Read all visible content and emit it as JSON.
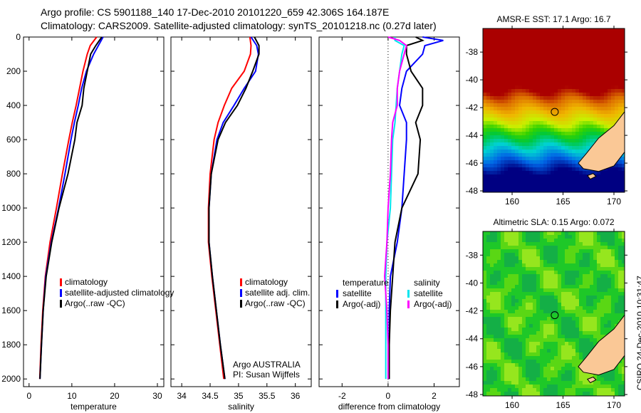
{
  "title": {
    "line1": "Argo profile: CS 5901188_140 17-Dec-2010 20101220_659 42.306S 164.187E",
    "line2": "Climatology: CARS2009. Satellite-adjusted climatology: synTS_20101218.nc (0.27d later)"
  },
  "credit": "CSIRO 24-Dec-2010 10:31:47",
  "colors": {
    "climatology": "#ff0000",
    "satellite": "#0000ff",
    "argo": "#000000",
    "sal_satellite": "#00e5ee",
    "sal_argo": "#ff00ff"
  },
  "chart_data": [
    {
      "type": "line",
      "xlabel": "temperature",
      "ylabel": "",
      "xlim": [
        -1.3,
        31.5
      ],
      "ylim": [
        2045,
        0
      ],
      "xticks": [
        0,
        10,
        20,
        30
      ],
      "yticks": [
        0,
        200,
        400,
        600,
        800,
        1000,
        1200,
        1400,
        1600,
        1800,
        2000
      ],
      "depth": [
        0,
        50,
        100,
        200,
        300,
        400,
        500,
        600,
        800,
        1000,
        1200,
        1400,
        1600,
        1800,
        2000
      ],
      "legend": [
        "climatology",
        "satellite-adjusted climatology",
        "Argo(..raw -QC)"
      ],
      "series": [
        {
          "name": "climatology",
          "color": "#ff0000",
          "values": [
            15.8,
            14.3,
            13.6,
            12.6,
            11.8,
            11.0,
            10.1,
            9.3,
            7.8,
            6.4,
            4.9,
            3.8,
            3.2,
            2.8,
            2.5
          ]
        },
        {
          "name": "satellite-adjusted climatology",
          "color": "#0000ff",
          "values": [
            17.3,
            16.2,
            15.1,
            13.4,
            12.3,
            11.5,
            10.6,
            9.8,
            8.4,
            6.9,
            5.2,
            3.9,
            3.3,
            2.9,
            2.55
          ]
        },
        {
          "name": "Argo(..raw -QC)",
          "color": "#000000",
          "values": [
            17.0,
            15.6,
            14.4,
            13.6,
            12.8,
            12.4,
            11.2,
            10.7,
            9.1,
            7.0,
            5.3,
            4.0,
            3.3,
            2.9,
            2.55
          ]
        }
      ]
    },
    {
      "type": "line",
      "xlabel": "salinity",
      "xlim": [
        33.81,
        36.28
      ],
      "ylim": [
        2045,
        0
      ],
      "xticks": [
        34,
        34.5,
        35,
        35.5,
        36
      ],
      "depth": [
        0,
        50,
        100,
        200,
        300,
        400,
        500,
        600,
        800,
        1000,
        1200,
        1400,
        1600,
        1800,
        2000
      ],
      "legend": [
        "climatology",
        "satellite adj. clim.",
        "Argo(..raw -QC)"
      ],
      "annotation": [
        "Argo AUSTRALIA",
        "PI: Susan Wijffels"
      ],
      "series": [
        {
          "name": "climatology",
          "color": "#ff0000",
          "values": [
            35.2,
            35.22,
            35.21,
            35.1,
            34.88,
            34.75,
            34.64,
            34.57,
            34.5,
            34.47,
            34.47,
            34.53,
            34.6,
            34.67,
            34.74
          ]
        },
        {
          "name": "satellite adj. clim.",
          "color": "#0000ff",
          "values": [
            35.22,
            35.32,
            35.35,
            35.3,
            35.1,
            34.92,
            34.73,
            34.62,
            34.52,
            34.48,
            34.48,
            34.54,
            34.61,
            34.68,
            34.76
          ]
        },
        {
          "name": "Argo(..raw -QC)",
          "color": "#000000",
          "values": [
            35.28,
            35.36,
            35.36,
            35.25,
            35.13,
            34.98,
            34.77,
            34.64,
            34.52,
            34.48,
            34.48,
            34.54,
            34.61,
            34.68,
            34.76
          ]
        }
      ]
    },
    {
      "type": "line",
      "xlabel": "difference from climatology",
      "xlim": [
        -3.0,
        3.1
      ],
      "ylim": [
        2045,
        0
      ],
      "xticks": [
        -2,
        0,
        2
      ],
      "depth": [
        0,
        20,
        50,
        100,
        200,
        300,
        400,
        500,
        600,
        800,
        1000,
        1200,
        1400,
        1600,
        1800,
        2000
      ],
      "legend_headers": [
        "temperature",
        "salinity"
      ],
      "legend": [
        "satellite",
        "Argo(-adj)",
        "satellite",
        "Argo(-adj)"
      ],
      "series": [
        {
          "name": "temperature satellite",
          "color": "#0000ff",
          "values": [
            1.5,
            2.4,
            1.6,
            1.5,
            0.8,
            0.6,
            0.5,
            0.8,
            0.8,
            0.7,
            0.6,
            0.4,
            0.1,
            0.05,
            0.05,
            0.05
          ]
        },
        {
          "name": "temperature Argo(-adj)",
          "color": "#000000",
          "values": [
            1.2,
            1.5,
            0.8,
            0.8,
            1.0,
            1.5,
            1.5,
            1.2,
            1.4,
            1.3,
            0.6,
            0.3,
            0.2,
            0.1,
            0.05,
            0.05
          ]
        },
        {
          "name": "salinity satellite",
          "color": "#00e5ee",
          "values": [
            0.3,
            0.3,
            0.7,
            0.6,
            0.5,
            0.4,
            0.35,
            0.3,
            0.2,
            0.15,
            0.1,
            -0.05,
            -0.1,
            -0.1,
            -0.1,
            -0.1
          ]
        },
        {
          "name": "salinity Argo(-adj)",
          "color": "#ff00ff",
          "values": [
            0.0,
            0.5,
            0.8,
            0.7,
            0.5,
            0.4,
            0.4,
            0.2,
            0.15,
            0.1,
            0.0,
            -0.05,
            -0.15,
            -0.05,
            0.0,
            0.0
          ]
        }
      ]
    }
  ],
  "maps": [
    {
      "title": "AMSR-E SST: 17.1 Argo: 16.7",
      "xticks": [
        160,
        165,
        170
      ],
      "yticks": [
        -38,
        -40,
        -42,
        -44,
        -46,
        -48
      ],
      "lon": [
        157.13,
        171.05
      ],
      "lat": [
        -36.3,
        -48.1
      ],
      "argo_lon": 164.187,
      "argo_lat": -42.306,
      "kind": "sst"
    },
    {
      "title": "Altimetric SLA: 0.15 Argo: 0.072",
      "xticks": [
        160,
        165,
        170
      ],
      "yticks": [
        -38,
        -40,
        -42,
        -44,
        -46,
        -48
      ],
      "lon": [
        157.13,
        171.05
      ],
      "lat": [
        -36.3,
        -48.1
      ],
      "argo_lon": 164.187,
      "argo_lat": -42.306,
      "kind": "sla"
    }
  ]
}
